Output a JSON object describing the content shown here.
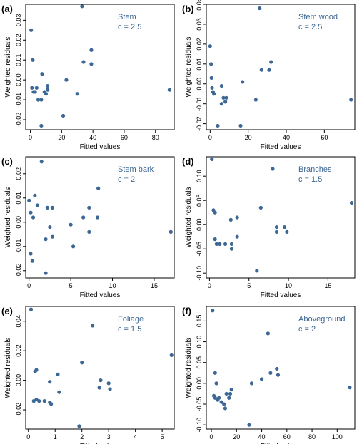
{
  "colors": {
    "marker": "#3d6794",
    "axis": "#000000",
    "annotation": "#3d6794"
  },
  "chart_data": [
    {
      "type": "scatter",
      "panel_label": "(a)",
      "title": "Stem",
      "subtitle": "c = 2.5",
      "xlabel": "Fitted values",
      "ylabel": "Weighted residuals",
      "xlim": [
        -3,
        92
      ],
      "ylim": [
        -0.025,
        0.038
      ],
      "xticks": [
        0,
        20,
        40,
        60,
        80
      ],
      "xtick_labels": [
        "0",
        "20",
        "40",
        "60",
        "80"
      ],
      "yticks": [
        -0.02,
        -0.01,
        0.0,
        0.01,
        0.02,
        0.03
      ],
      "ytick_labels": [
        "-0.02",
        "-0.01",
        "0.00",
        "0.01",
        "0.02",
        "0.03"
      ],
      "grid": false,
      "legend": "none",
      "points": [
        [
          0.5,
          0.025
        ],
        [
          1.5,
          0.01
        ],
        [
          1,
          -0.004
        ],
        [
          2,
          -0.006
        ],
        [
          3,
          -0.006
        ],
        [
          4,
          -0.004
        ],
        [
          5,
          -0.01
        ],
        [
          7,
          -0.01
        ],
        [
          7.5,
          0.003
        ],
        [
          7,
          -0.023
        ],
        [
          9,
          -0.006
        ],
        [
          10,
          -0.007
        ],
        [
          11,
          -0.003
        ],
        [
          11,
          -0.005
        ],
        [
          21,
          -0.018
        ],
        [
          23,
          0.0
        ],
        [
          30,
          -0.007
        ],
        [
          33,
          0.037
        ],
        [
          34,
          0.009
        ],
        [
          39,
          0.015
        ],
        [
          39,
          0.008
        ],
        [
          89,
          -0.005
        ]
      ]
    },
    {
      "type": "scatter",
      "panel_label": "(b)",
      "title": "Stem wood",
      "subtitle": "c = 2.5",
      "xlabel": "Fitted values",
      "ylabel": "Weighted residuals",
      "xlim": [
        -2,
        76
      ],
      "ylim": [
        -0.023,
        0.04
      ],
      "xticks": [
        0,
        20,
        40,
        60
      ],
      "xtick_labels": [
        "0",
        "20",
        "40",
        "60"
      ],
      "yticks": [
        -0.02,
        -0.01,
        0.0,
        0.01,
        0.02,
        0.03,
        0.04
      ],
      "ytick_labels": [
        "-0.02",
        "-0.01",
        "0.00",
        "0.01",
        "0.02",
        "0.03",
        "0.04"
      ],
      "grid": false,
      "legend": "none",
      "points": [
        [
          0,
          0.019
        ],
        [
          0.5,
          0.01
        ],
        [
          0.7,
          0.003
        ],
        [
          1,
          -0.002
        ],
        [
          1.5,
          -0.004
        ],
        [
          2,
          -0.005
        ],
        [
          4,
          -0.021
        ],
        [
          6,
          -0.001
        ],
        [
          6,
          -0.01
        ],
        [
          7,
          -0.007
        ],
        [
          8,
          -0.009
        ],
        [
          8.5,
          -0.007
        ],
        [
          16,
          -0.021
        ],
        [
          17,
          0.001
        ],
        [
          24,
          -0.008
        ],
        [
          26,
          0.038
        ],
        [
          27,
          0.007
        ],
        [
          31,
          0.007
        ],
        [
          32,
          0.011
        ],
        [
          74,
          -0.008
        ]
      ]
    },
    {
      "type": "scatter",
      "panel_label": "(c)",
      "title": "Stem bark",
      "subtitle": "c = 2",
      "xlabel": "Fitted values",
      "ylabel": "Weighted residuals",
      "xlim": [
        -0.4,
        17.4
      ],
      "ylim": [
        -0.023,
        0.027
      ],
      "xticks": [
        0,
        5,
        10,
        15
      ],
      "xtick_labels": [
        "0",
        "5",
        "10",
        "15"
      ],
      "yticks": [
        -0.02,
        -0.01,
        0.0,
        0.01,
        0.02
      ],
      "ytick_labels": [
        "-0.02",
        "-0.01",
        "0.00",
        "0.01",
        "0.02"
      ],
      "grid": false,
      "legend": "none",
      "points": [
        [
          0,
          0.009
        ],
        [
          0.2,
          0.004
        ],
        [
          0.2,
          -0.013
        ],
        [
          0.4,
          -0.016
        ],
        [
          0.5,
          0.002
        ],
        [
          0.7,
          0.011
        ],
        [
          1,
          0.007
        ],
        [
          1.5,
          0.025
        ],
        [
          2,
          -0.007
        ],
        [
          2,
          -0.021
        ],
        [
          2.2,
          0.006
        ],
        [
          2.5,
          -0.002
        ],
        [
          2.8,
          0.006
        ],
        [
          2.8,
          -0.006
        ],
        [
          5,
          -0.001
        ],
        [
          5.3,
          -0.01
        ],
        [
          6.5,
          0.002
        ],
        [
          7.2,
          0.006
        ],
        [
          7.2,
          -0.004
        ],
        [
          8.2,
          0.002
        ],
        [
          8.3,
          0.014
        ],
        [
          17,
          -0.004
        ]
      ]
    },
    {
      "type": "scatter",
      "panel_label": "(d)",
      "title": "Branches",
      "subtitle": "c = 1.5",
      "xlabel": "Fitted values",
      "ylabel": "Weighted residuals",
      "xlim": [
        -0.4,
        18.4
      ],
      "ylim": [
        -0.11,
        0.14
      ],
      "xticks": [
        0,
        5,
        10,
        15
      ],
      "xtick_labels": [
        "0",
        "5",
        "10",
        "15"
      ],
      "yticks": [
        -0.1,
        -0.05,
        0.0,
        0.05,
        0.1
      ],
      "ytick_labels": [
        "-0.10",
        "-0.05",
        "0.00",
        "0.05",
        "0.10"
      ],
      "grid": false,
      "legend": "none",
      "points": [
        [
          0.3,
          0.135
        ],
        [
          0.5,
          0.03
        ],
        [
          0.7,
          0.025
        ],
        [
          0.7,
          -0.03
        ],
        [
          0.9,
          -0.04
        ],
        [
          1.3,
          -0.04
        ],
        [
          2,
          -0.04
        ],
        [
          2.7,
          0.01
        ],
        [
          2.8,
          -0.04
        ],
        [
          2.8,
          -0.05
        ],
        [
          3.5,
          0.015
        ],
        [
          3.5,
          -0.025
        ],
        [
          6,
          -0.095
        ],
        [
          6.5,
          0.035
        ],
        [
          8,
          0.115
        ],
        [
          8.5,
          -0.005
        ],
        [
          8.5,
          -0.015
        ],
        [
          9.5,
          -0.005
        ],
        [
          9.8,
          -0.015
        ],
        [
          18,
          0.045
        ]
      ]
    },
    {
      "type": "scatter",
      "panel_label": "(e)",
      "title": "Foliage",
      "subtitle": "c = 1.5",
      "xlabel": "Fitted values",
      "ylabel": "Weighted residuals",
      "xlim": [
        -0.1,
        5.45
      ],
      "ylim": [
        -0.033,
        0.05
      ],
      "xticks": [
        0,
        1,
        2,
        3,
        4,
        5
      ],
      "xtick_labels": [
        "0",
        "1",
        "2",
        "3",
        "4",
        "5"
      ],
      "yticks": [
        -0.02,
        0.0,
        0.02,
        0.04
      ],
      "ytick_labels": [
        "-0.02",
        "0.00",
        "0.02",
        "0.04"
      ],
      "grid": false,
      "legend": "none",
      "points": [
        [
          0.1,
          0.048
        ],
        [
          0.2,
          -0.014
        ],
        [
          0.25,
          0.006
        ],
        [
          0.3,
          0.007
        ],
        [
          0.3,
          -0.013
        ],
        [
          0.4,
          -0.014
        ],
        [
          0.6,
          -0.014
        ],
        [
          0.8,
          -0.001
        ],
        [
          0.8,
          -0.015
        ],
        [
          0.85,
          -0.016
        ],
        [
          1.1,
          0.004
        ],
        [
          1.15,
          -0.008
        ],
        [
          1.9,
          -0.031
        ],
        [
          2,
          0.012
        ],
        [
          2.4,
          0.037
        ],
        [
          2.65,
          -0.005
        ],
        [
          2.7,
          0.0
        ],
        [
          3,
          -0.002
        ],
        [
          3.05,
          -0.006
        ],
        [
          5.35,
          0.017
        ]
      ]
    },
    {
      "type": "scatter",
      "panel_label": "(f)",
      "title": "Aboveground",
      "subtitle": "c = 2",
      "xlabel": "Fitted values",
      "ylabel": "Weighted residuals",
      "xlim": [
        -4,
        114
      ],
      "ylim": [
        -0.11,
        0.185
      ],
      "xticks": [
        0,
        20,
        40,
        60,
        80,
        100
      ],
      "xtick_labels": [
        "0",
        "20",
        "40",
        "60",
        "80",
        "100"
      ],
      "yticks": [
        -0.1,
        -0.05,
        0.0,
        0.05,
        0.1,
        0.15
      ],
      "ytick_labels": [
        "-0.10",
        "-0.05",
        "0.00",
        "0.05",
        "0.10",
        "0.15"
      ],
      "grid": false,
      "legend": "none",
      "points": [
        [
          1,
          0.175
        ],
        [
          2,
          -0.03
        ],
        [
          3,
          -0.035
        ],
        [
          3,
          0.025
        ],
        [
          4,
          0.0
        ],
        [
          5,
          -0.04
        ],
        [
          6,
          -0.035
        ],
        [
          8,
          -0.045
        ],
        [
          10,
          -0.05
        ],
        [
          11,
          -0.06
        ],
        [
          12,
          -0.025
        ],
        [
          14,
          -0.035
        ],
        [
          15,
          -0.025
        ],
        [
          16,
          -0.015
        ],
        [
          30,
          -0.1
        ],
        [
          32,
          0.0
        ],
        [
          40,
          0.01
        ],
        [
          45,
          0.12
        ],
        [
          47,
          0.025
        ],
        [
          52,
          0.035
        ],
        [
          53,
          0.02
        ],
        [
          110,
          -0.01
        ]
      ]
    }
  ]
}
